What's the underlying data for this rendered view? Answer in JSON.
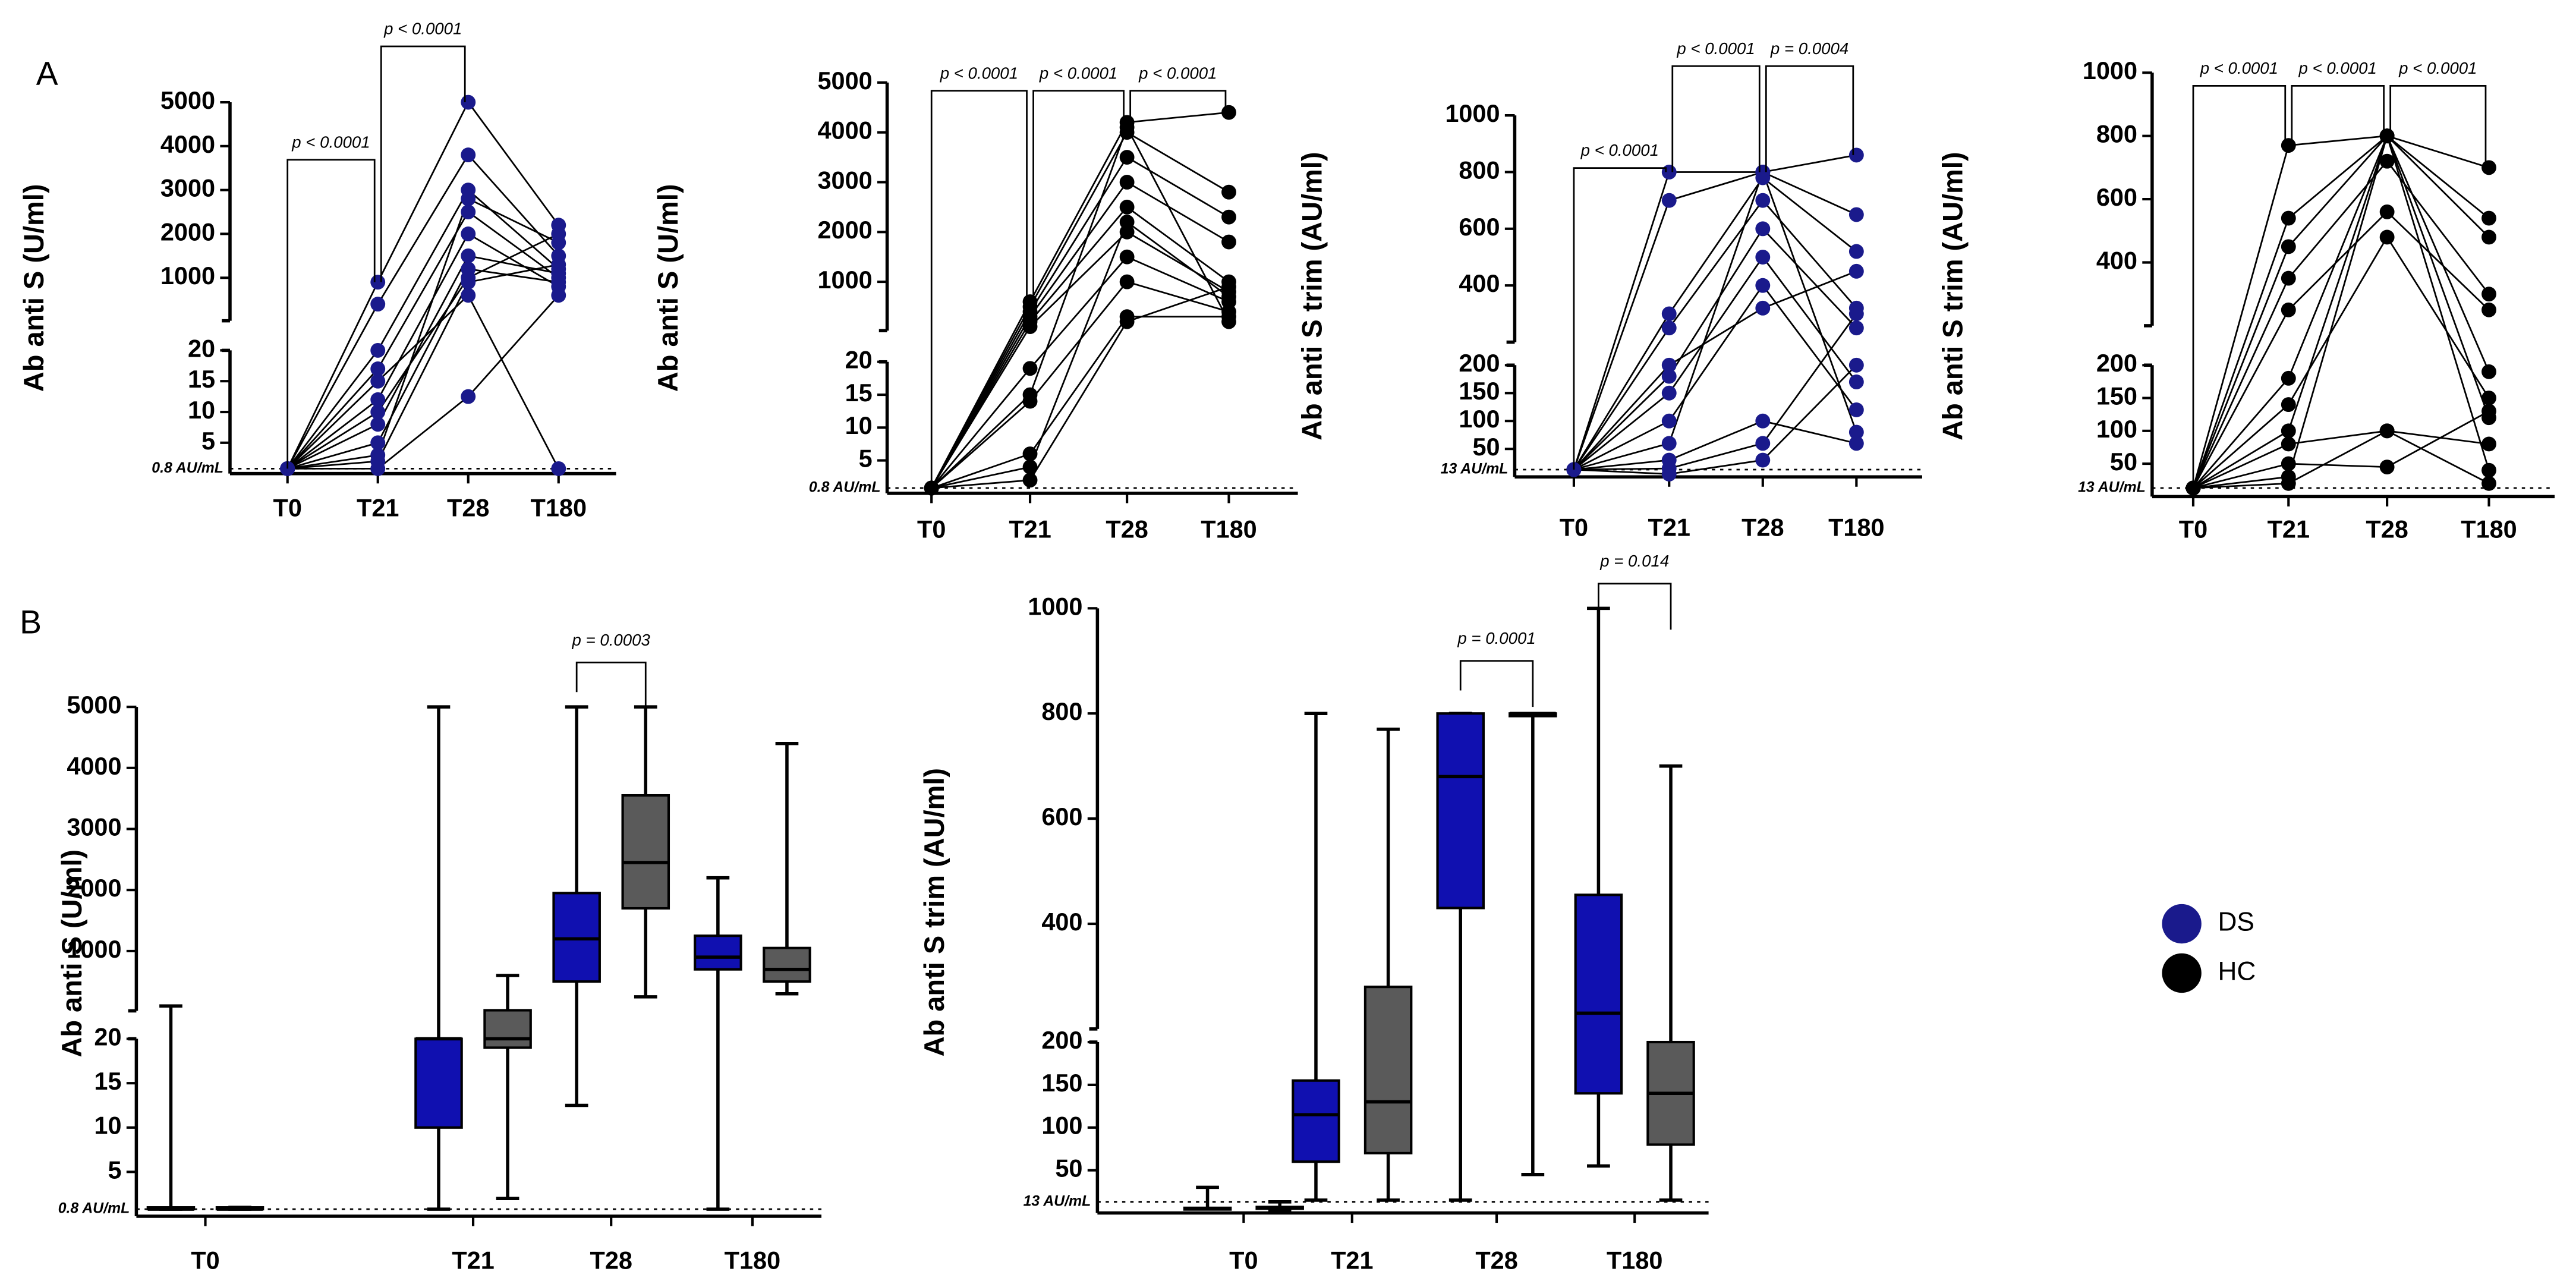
{
  "chart_data": [
    {
      "type": "scatter",
      "panel": "A",
      "ylabel": "Ab anti S (U/ml)",
      "color": "#1a1a8c",
      "categories": [
        "T0",
        "T21",
        "T28",
        "T180"
      ],
      "ylim_low": [
        0,
        20
      ],
      "yticks_low": [
        5,
        10,
        15,
        20
      ],
      "ylim_high": [
        20,
        5000
      ],
      "yticks_high": [
        1000,
        2000,
        3000,
        4000,
        5000
      ],
      "threshold": {
        "value": 0.8,
        "label": "0.8 AU/mL"
      },
      "annotations": [
        {
          "text": "p < 0.0001",
          "from": "T0",
          "to": "T21"
        },
        {
          "text": "p < 0.0001",
          "from": "T21",
          "to": "T28"
        }
      ],
      "series": [
        {
          "values": [
            0.8,
            900,
            5000,
            2200
          ]
        },
        {
          "values": [
            0.8,
            400,
            3800,
            1500
          ]
        },
        {
          "values": [
            0.8,
            20,
            3000,
            1200
          ]
        },
        {
          "values": [
            0.8,
            17,
            2500,
            1000
          ]
        },
        {
          "values": [
            0.8,
            12,
            2000,
            800
          ]
        },
        {
          "values": [
            0.8,
            8,
            1500,
            1100
          ]
        },
        {
          "values": [
            0.8,
            5,
            1200,
            900
          ]
        },
        {
          "values": [
            0.8,
            2,
            900,
            1300
          ]
        },
        {
          "values": [
            0.8,
            0.8,
            12.5,
            600
          ]
        },
        {
          "values": [
            0.8,
            15,
            600,
            0.8
          ]
        },
        {
          "values": [
            0.8,
            3,
            2800,
            1800
          ]
        },
        {
          "values": [
            0.8,
            10,
            1000,
            2000
          ]
        }
      ]
    },
    {
      "type": "scatter",
      "ylabel": "Ab anti S (U/ml)",
      "color": "#000000",
      "categories": [
        "T0",
        "T21",
        "T28",
        "T180"
      ],
      "ylim_low": [
        0,
        20
      ],
      "yticks_low": [
        5,
        10,
        15,
        20
      ],
      "ylim_high": [
        20,
        5000
      ],
      "yticks_high": [
        1000,
        2000,
        3000,
        4000,
        5000
      ],
      "threshold": {
        "value": 0.8,
        "label": "0.8 AU/mL"
      },
      "annotations": [
        {
          "text": "p < 0.0001",
          "from": "T0",
          "to": "T21"
        },
        {
          "text": "p < 0.0001",
          "from": "T21",
          "to": "T28"
        },
        {
          "text": "p < 0.0001",
          "from": "T28",
          "to": "T180"
        }
      ],
      "series": [
        {
          "values": [
            0.8,
            600,
            4200,
            4400
          ]
        },
        {
          "values": [
            0.8,
            500,
            4000,
            2800
          ]
        },
        {
          "values": [
            0.8,
            400,
            3500,
            2300
          ]
        },
        {
          "values": [
            0.8,
            300,
            3000,
            1800
          ]
        },
        {
          "values": [
            0.8,
            200,
            2500,
            1000
          ]
        },
        {
          "values": [
            0.8,
            100,
            2000,
            800
          ]
        },
        {
          "values": [
            0.8,
            19,
            1500,
            600
          ]
        },
        {
          "values": [
            0.8,
            14,
            1000,
            400
          ]
        },
        {
          "values": [
            0.8,
            6,
            300,
            300
          ]
        },
        {
          "values": [
            0.8,
            2,
            200,
            900
          ]
        },
        {
          "values": [
            0.8,
            4,
            2200,
            700
          ]
        },
        {
          "values": [
            0.8,
            15,
            4100,
            200
          ]
        }
      ]
    },
    {
      "type": "scatter",
      "ylabel": "Ab anti S trim (AU/ml)",
      "color": "#1a1a8c",
      "categories": [
        "T0",
        "T21",
        "T28",
        "T180"
      ],
      "ylim_low": [
        0,
        200
      ],
      "yticks_low": [
        50,
        100,
        150
      ],
      "ylim_high": [
        200,
        1000
      ],
      "yticks_high": [
        200,
        400,
        600,
        800,
        1000
      ],
      "threshold": {
        "value": 13,
        "label": "13 AU/mL"
      },
      "annotations": [
        {
          "text": "p < 0.0001",
          "from": "T0",
          "to": "T21"
        },
        {
          "text": "p < 0.0001",
          "from": "T21",
          "to": "T28"
        },
        {
          "text": "p = 0.0004",
          "from": "T28",
          "to": "T180"
        }
      ],
      "series": [
        {
          "values": [
            13,
            800,
            800,
            860
          ]
        },
        {
          "values": [
            13,
            700,
            800,
            650
          ]
        },
        {
          "values": [
            13,
            300,
            780,
            520
          ]
        },
        {
          "values": [
            13,
            250,
            700,
            320
          ]
        },
        {
          "values": [
            13,
            180,
            600,
            250
          ]
        },
        {
          "values": [
            13,
            150,
            500,
            170
          ]
        },
        {
          "values": [
            13,
            100,
            400,
            120
          ]
        },
        {
          "values": [
            13,
            60,
            800,
            80
          ]
        },
        {
          "values": [
            13,
            30,
            100,
            60
          ]
        },
        {
          "values": [
            13,
            15,
            60,
            300
          ]
        },
        {
          "values": [
            13,
            5,
            30,
            200
          ]
        },
        {
          "values": [
            13,
            200,
            320,
            450
          ]
        }
      ]
    },
    {
      "type": "scatter",
      "ylabel": "Ab anti S trim (AU/ml)",
      "color": "#000000",
      "categories": [
        "T0",
        "T21",
        "T28",
        "T180"
      ],
      "ylim_low": [
        0,
        200
      ],
      "yticks_low": [
        50,
        100,
        150
      ],
      "ylim_high": [
        200,
        1000
      ],
      "yticks_high": [
        200,
        400,
        600,
        800,
        1000
      ],
      "threshold": {
        "value": 13,
        "label": "13 AU/mL"
      },
      "annotations": [
        {
          "text": "p < 0.0001",
          "from": "T0",
          "to": "T21"
        },
        {
          "text": "p < 0.0001",
          "from": "T21",
          "to": "T28"
        },
        {
          "text": "p < 0.0001",
          "from": "T28",
          "to": "T180"
        }
      ],
      "series": [
        {
          "values": [
            13,
            770,
            800,
            700
          ]
        },
        {
          "values": [
            13,
            540,
            800,
            540
          ]
        },
        {
          "values": [
            13,
            450,
            800,
            480
          ]
        },
        {
          "values": [
            13,
            350,
            720,
            300
          ]
        },
        {
          "values": [
            13,
            250,
            560,
            250
          ]
        },
        {
          "values": [
            13,
            180,
            800,
            190
          ]
        },
        {
          "values": [
            13,
            140,
            480,
            150
          ]
        },
        {
          "values": [
            13,
            100,
            800,
            120
          ]
        },
        {
          "values": [
            13,
            80,
            100,
            80
          ]
        },
        {
          "values": [
            13,
            50,
            45,
            130
          ]
        },
        {
          "values": [
            13,
            30,
            800,
            40
          ]
        },
        {
          "values": [
            13,
            20,
            100,
            20
          ]
        }
      ]
    },
    {
      "type": "box",
      "panel": "B",
      "ylabel": "Ab anti S (U/ml)",
      "categories": [
        "T0",
        "T21",
        "T28",
        "T180"
      ],
      "ylim_low": [
        0,
        20
      ],
      "yticks_low": [
        5,
        10,
        15,
        20
      ],
      "ylim_high": [
        20,
        5000
      ],
      "yticks_high": [
        1000,
        2000,
        3000,
        4000,
        5000
      ],
      "threshold": {
        "value": 0.8,
        "label": "0.8 AU/mL"
      },
      "annotations": [
        {
          "text": "p = 0.0003",
          "category": "T28"
        }
      ],
      "series": [
        {
          "name": "DS",
          "color": "#1010b0",
          "values": [
            {
              "min": 0.8,
              "q1": 0.8,
              "median": 0.8,
              "q3": 1,
              "max": 100
            },
            {
              "min": 0.8,
              "q1": 10,
              "median": 20,
              "q3": 20,
              "max": 5000
            },
            {
              "min": 12.5,
              "q1": 500,
              "median": 1200,
              "q3": 1950,
              "max": 5000
            },
            {
              "min": 0.8,
              "q1": 700,
              "median": 900,
              "q3": 1250,
              "max": 2200
            }
          ]
        },
        {
          "name": "HC",
          "color": "#5a5a5a",
          "values": [
            {
              "min": 0.8,
              "q1": 0.8,
              "median": 0.8,
              "q3": 1,
              "max": 1
            },
            {
              "min": 2,
              "q1": 19,
              "median": 20,
              "q3": 30,
              "max": 600
            },
            {
              "min": 250,
              "q1": 1700,
              "median": 2450,
              "q3": 3550,
              "max": 5000
            },
            {
              "min": 300,
              "q1": 500,
              "median": 700,
              "q3": 1050,
              "max": 4400
            }
          ]
        }
      ]
    },
    {
      "type": "box",
      "ylabel": "Ab anti S trim (AU/ml)",
      "categories": [
        "T0",
        "T21",
        "T28",
        "T180"
      ],
      "ylim_low": [
        0,
        200
      ],
      "yticks_low": [
        50,
        100,
        150
      ],
      "ylim_high": [
        200,
        1000
      ],
      "yticks_high": [
        200,
        400,
        600,
        800,
        1000
      ],
      "threshold": {
        "value": 13,
        "label": "13 AU/mL"
      },
      "annotations": [
        {
          "text": "p = 0.0001",
          "category": "T28"
        },
        {
          "text": "p = 0.014",
          "category": "T180"
        }
      ],
      "series": [
        {
          "name": "DS",
          "color": "#1010b0",
          "values": [
            {
              "min": 5,
              "q1": 5,
              "median": 5,
              "q3": 6,
              "max": 30
            },
            {
              "min": 15,
              "q1": 60,
              "median": 115,
              "q3": 155,
              "max": 800
            },
            {
              "min": 15,
              "q1": 430,
              "median": 680,
              "q3": 800,
              "max": 800
            },
            {
              "min": 55,
              "q1": 140,
              "median": 230,
              "q3": 455,
              "max": 1000
            }
          ]
        },
        {
          "name": "HC",
          "color": "#5a5a5a",
          "values": [
            {
              "min": 3,
              "q1": 5,
              "median": 6,
              "q3": 7,
              "max": 13
            },
            {
              "min": 15,
              "q1": 70,
              "median": 130,
              "q3": 280,
              "max": 770
            },
            {
              "min": 45,
              "q1": 795,
              "median": 800,
              "q3": 800,
              "max": 800
            },
            {
              "min": 15,
              "q1": 80,
              "median": 140,
              "q3": 200,
              "max": 700
            }
          ]
        }
      ]
    }
  ]
}
